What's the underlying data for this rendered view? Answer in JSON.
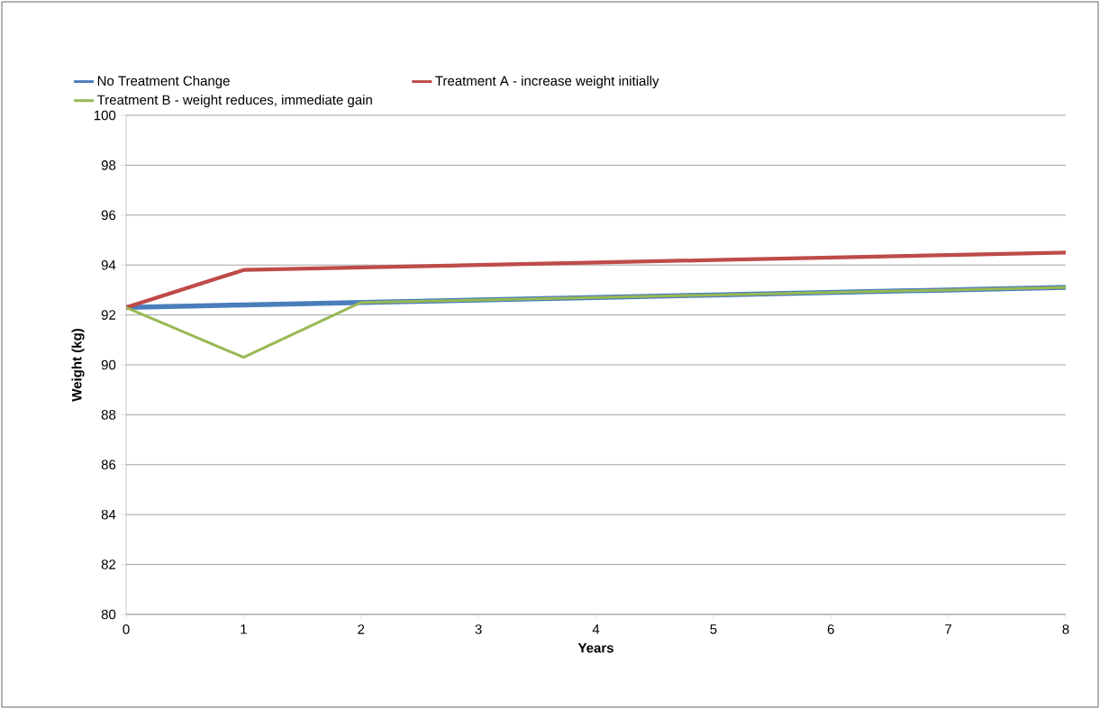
{
  "chart_data": {
    "type": "line",
    "xlabel": "Years",
    "ylabel": "Weight (kg)",
    "x": [
      0,
      1,
      2,
      3,
      4,
      5,
      6,
      7,
      8
    ],
    "series": [
      {
        "name": "No Treatment Change",
        "color": "#4a7ebb",
        "values": [
          92.3,
          92.4,
          92.5,
          92.6,
          92.7,
          92.8,
          92.9,
          93.0,
          93.1
        ]
      },
      {
        "name": "Treatment A - increase weight initially",
        "color": "#be4b48",
        "values": [
          92.3,
          93.8,
          93.9,
          94.0,
          94.1,
          94.2,
          94.3,
          94.4,
          94.5
        ]
      },
      {
        "name": "Treatment B - weight reduces, immediate gain",
        "color": "#98b954",
        "values": [
          92.3,
          90.3,
          92.5,
          92.6,
          92.7,
          92.8,
          92.9,
          93.0,
          93.1
        ]
      }
    ],
    "xlim": [
      0,
      8
    ],
    "ylim": [
      80,
      100
    ],
    "xticks": [
      0,
      1,
      2,
      3,
      4,
      5,
      6,
      7,
      8
    ],
    "yticks": [
      80,
      82,
      84,
      86,
      88,
      90,
      92,
      94,
      96,
      98,
      100
    ],
    "grid": "y",
    "legend": "top"
  }
}
